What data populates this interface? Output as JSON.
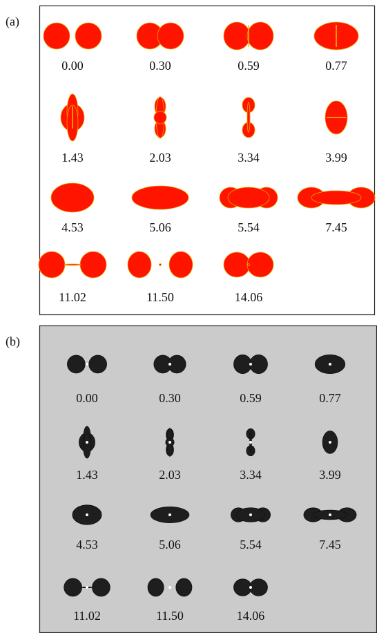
{
  "panels": [
    {
      "label": "(a)",
      "frames": [
        "0.00",
        "0.30",
        "0.59",
        "0.77",
        "1.43",
        "2.03",
        "3.34",
        "3.99",
        "4.53",
        "5.06",
        "5.54",
        "7.45",
        "11.02",
        "11.50",
        "14.06"
      ]
    },
    {
      "label": "(b)",
      "frames": [
        "0.00",
        "0.30",
        "0.59",
        "0.77",
        "1.43",
        "2.03",
        "3.34",
        "3.99",
        "4.53",
        "5.06",
        "5.54",
        "7.45",
        "11.02",
        "11.50",
        "14.06"
      ]
    }
  ]
}
